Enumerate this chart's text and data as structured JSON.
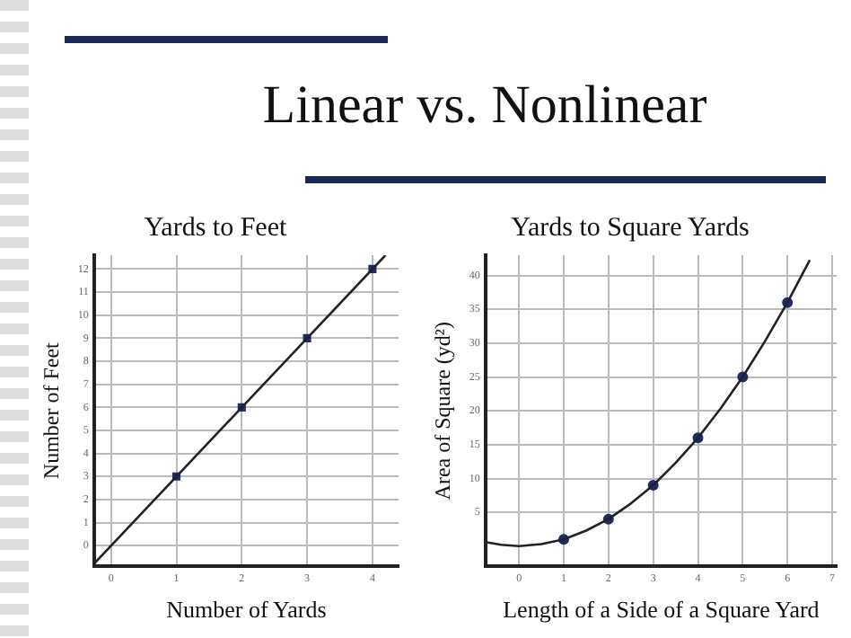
{
  "chart_data": [
    {
      "type": "scatter",
      "title": "Yards to Feet",
      "xlabel": "Number of Yards",
      "ylabel": "Number of Feet",
      "annotations": [
        "Linear vs. Nonlinear"
      ],
      "xlim": [
        -0.26,
        4.4
      ],
      "ylim": [
        -0.9,
        12.6
      ],
      "xticks": [
        0,
        1,
        2,
        3,
        4
      ],
      "yticks": [
        0,
        1,
        2,
        3,
        4,
        5,
        6,
        7,
        8,
        9,
        10,
        11,
        12
      ],
      "grid": true,
      "legend": false,
      "series": [
        {
          "type": "line",
          "color": "#222222",
          "marker": "none",
          "x": [
            -0.26,
            4.2
          ],
          "values": [
            -0.78,
            12.6
          ]
        },
        {
          "type": "scatter",
          "color": "#1f2a6b",
          "marker": "square",
          "x": [
            1,
            2,
            3,
            4
          ],
          "values": [
            3,
            6,
            9,
            12
          ]
        }
      ]
    },
    {
      "type": "scatter",
      "title": "Yards to Square Yards",
      "xlabel": "Length of a Side of a Square Yard",
      "ylabel": "Area of Square (yd²)",
      "xlim": [
        -0.75,
        7.1
      ],
      "ylim": [
        -3,
        43
      ],
      "xticks": [
        0,
        1,
        2,
        3,
        4,
        5,
        6,
        7
      ],
      "yticks": [
        5,
        10,
        15,
        20,
        25,
        30,
        35,
        40
      ],
      "grid": true,
      "legend": false,
      "series": [
        {
          "type": "line",
          "color": "#222222",
          "marker": "none",
          "x": [
            -0.75,
            -0.4,
            0,
            0.5,
            1,
            1.5,
            2,
            2.5,
            3,
            3.5,
            4,
            4.5,
            5,
            5.5,
            6,
            6.5
          ],
          "values": [
            0.6,
            0.2,
            0,
            0.3,
            1,
            2.3,
            4,
            6.3,
            9,
            12.3,
            16,
            20.3,
            25,
            30.3,
            36,
            42.3
          ]
        },
        {
          "type": "scatter",
          "color": "#1f2a6b",
          "marker": "circle",
          "x": [
            1,
            2,
            3,
            4,
            5,
            6
          ],
          "values": [
            1,
            4,
            9,
            16,
            25,
            36
          ]
        }
      ]
    }
  ]
}
